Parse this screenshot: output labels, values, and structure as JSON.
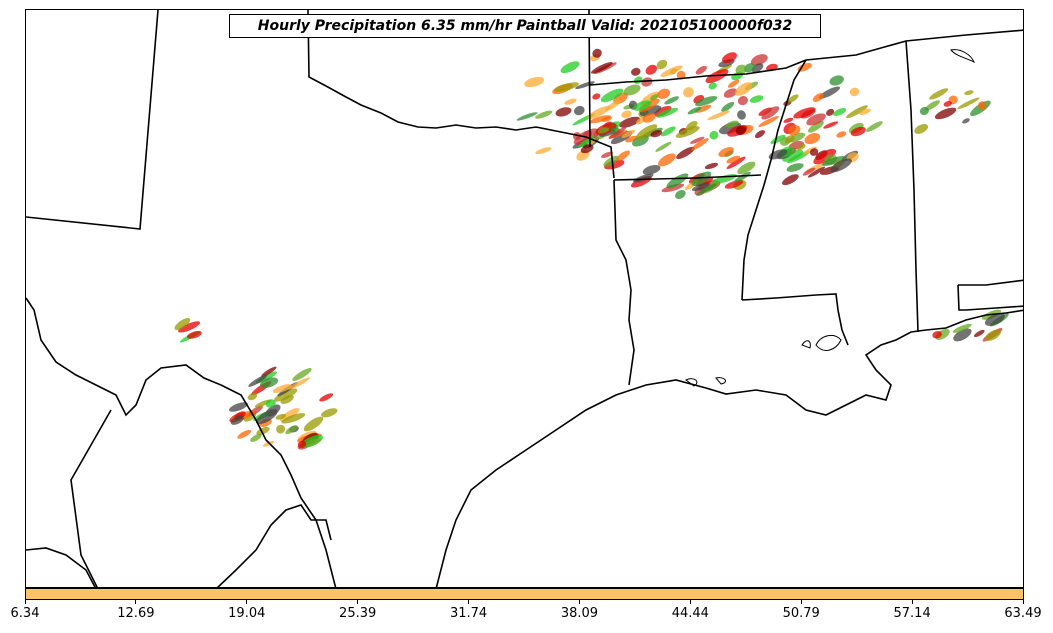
{
  "title": "Hourly Precipitation 6.35 mm/hr Paintball Valid: 202105100000f032",
  "colorbar": {
    "color": "#ffc266",
    "ticks": [
      "6.34",
      "12.69",
      "19.04",
      "25.39",
      "31.74",
      "38.09",
      "44.44",
      "50.79",
      "57.14",
      "63.49"
    ]
  },
  "member_colors": [
    "#e60000",
    "#ff6600",
    "#ffaa33",
    "#999900",
    "#2d8f2d",
    "#22cc22",
    "#800000",
    "#444444",
    "#cc3333",
    "#66aa22"
  ],
  "chart_data": {
    "type": "map",
    "region": "South-central United States (Texas, Oklahoma, Arkansas, Louisiana, Mississippi, Alabama)",
    "field": "Hourly Precipitation 6.35 mm/hr Paintball",
    "valid": "202105100000f032",
    "colorbar_range": [
      6.34,
      63.49
    ],
    "colorbar_ticks": [
      6.34,
      12.69,
      19.04,
      25.39,
      31.74,
      38.09,
      44.44,
      50.79,
      57.14,
      63.49
    ]
  }
}
